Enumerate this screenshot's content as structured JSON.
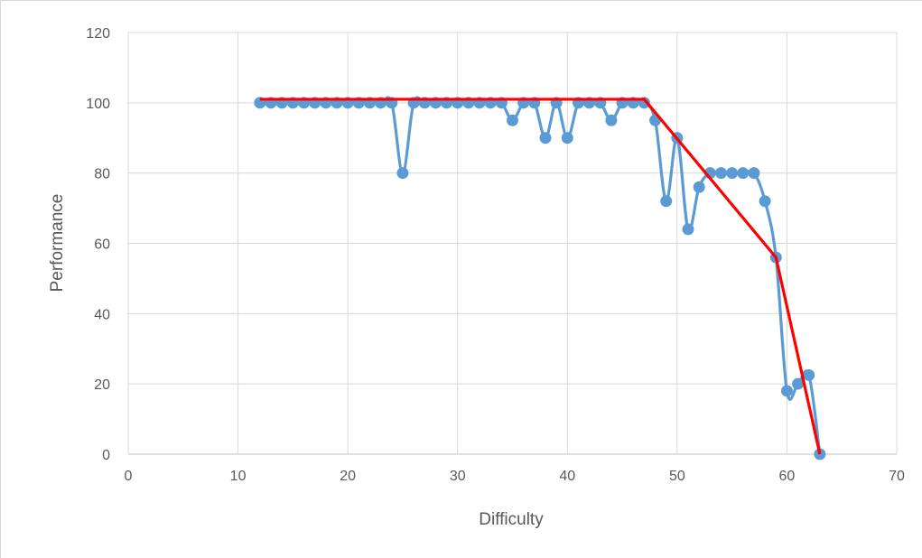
{
  "chart_data": {
    "type": "line",
    "title": "",
    "xlabel": "Difficulty",
    "ylabel": "Performance",
    "xlim": [
      0,
      70
    ],
    "ylim": [
      0,
      120
    ],
    "x_ticks": [
      "0",
      "10",
      "20",
      "30",
      "40",
      "50",
      "60",
      "70"
    ],
    "y_ticks": [
      "0",
      "20",
      "40",
      "60",
      "80",
      "100",
      "120"
    ],
    "grid": true,
    "legend": "none",
    "series": [
      {
        "color": "#5b9bd5",
        "style": "smooth-line-with-markers",
        "x": [
          12,
          13,
          14,
          15,
          16,
          17,
          18,
          19,
          20,
          21,
          22,
          23,
          24,
          25,
          26,
          27,
          28,
          29,
          30,
          31,
          32,
          33,
          34,
          35,
          36,
          37,
          38,
          39,
          40,
          41,
          42,
          43,
          44,
          45,
          46,
          47,
          48,
          49,
          50,
          51,
          52,
          53,
          54,
          55,
          56,
          57,
          58,
          59,
          60,
          61,
          62,
          63
        ],
        "y": [
          100,
          100,
          100,
          100,
          100,
          100,
          100,
          100,
          100,
          100,
          100,
          100,
          100,
          80,
          100,
          100,
          100,
          100,
          100,
          100,
          100,
          100,
          100,
          95,
          100,
          100,
          90,
          100,
          90,
          100,
          100,
          100,
          95,
          100,
          100,
          100,
          95,
          72,
          90,
          64,
          76,
          80,
          80,
          80,
          80,
          80,
          72,
          56,
          18,
          20,
          22.5,
          0
        ]
      },
      {
        "color": "#ff0000",
        "style": "straight-line",
        "x": [
          12,
          47,
          59,
          63
        ],
        "y": [
          101,
          101,
          56,
          0
        ]
      }
    ]
  }
}
